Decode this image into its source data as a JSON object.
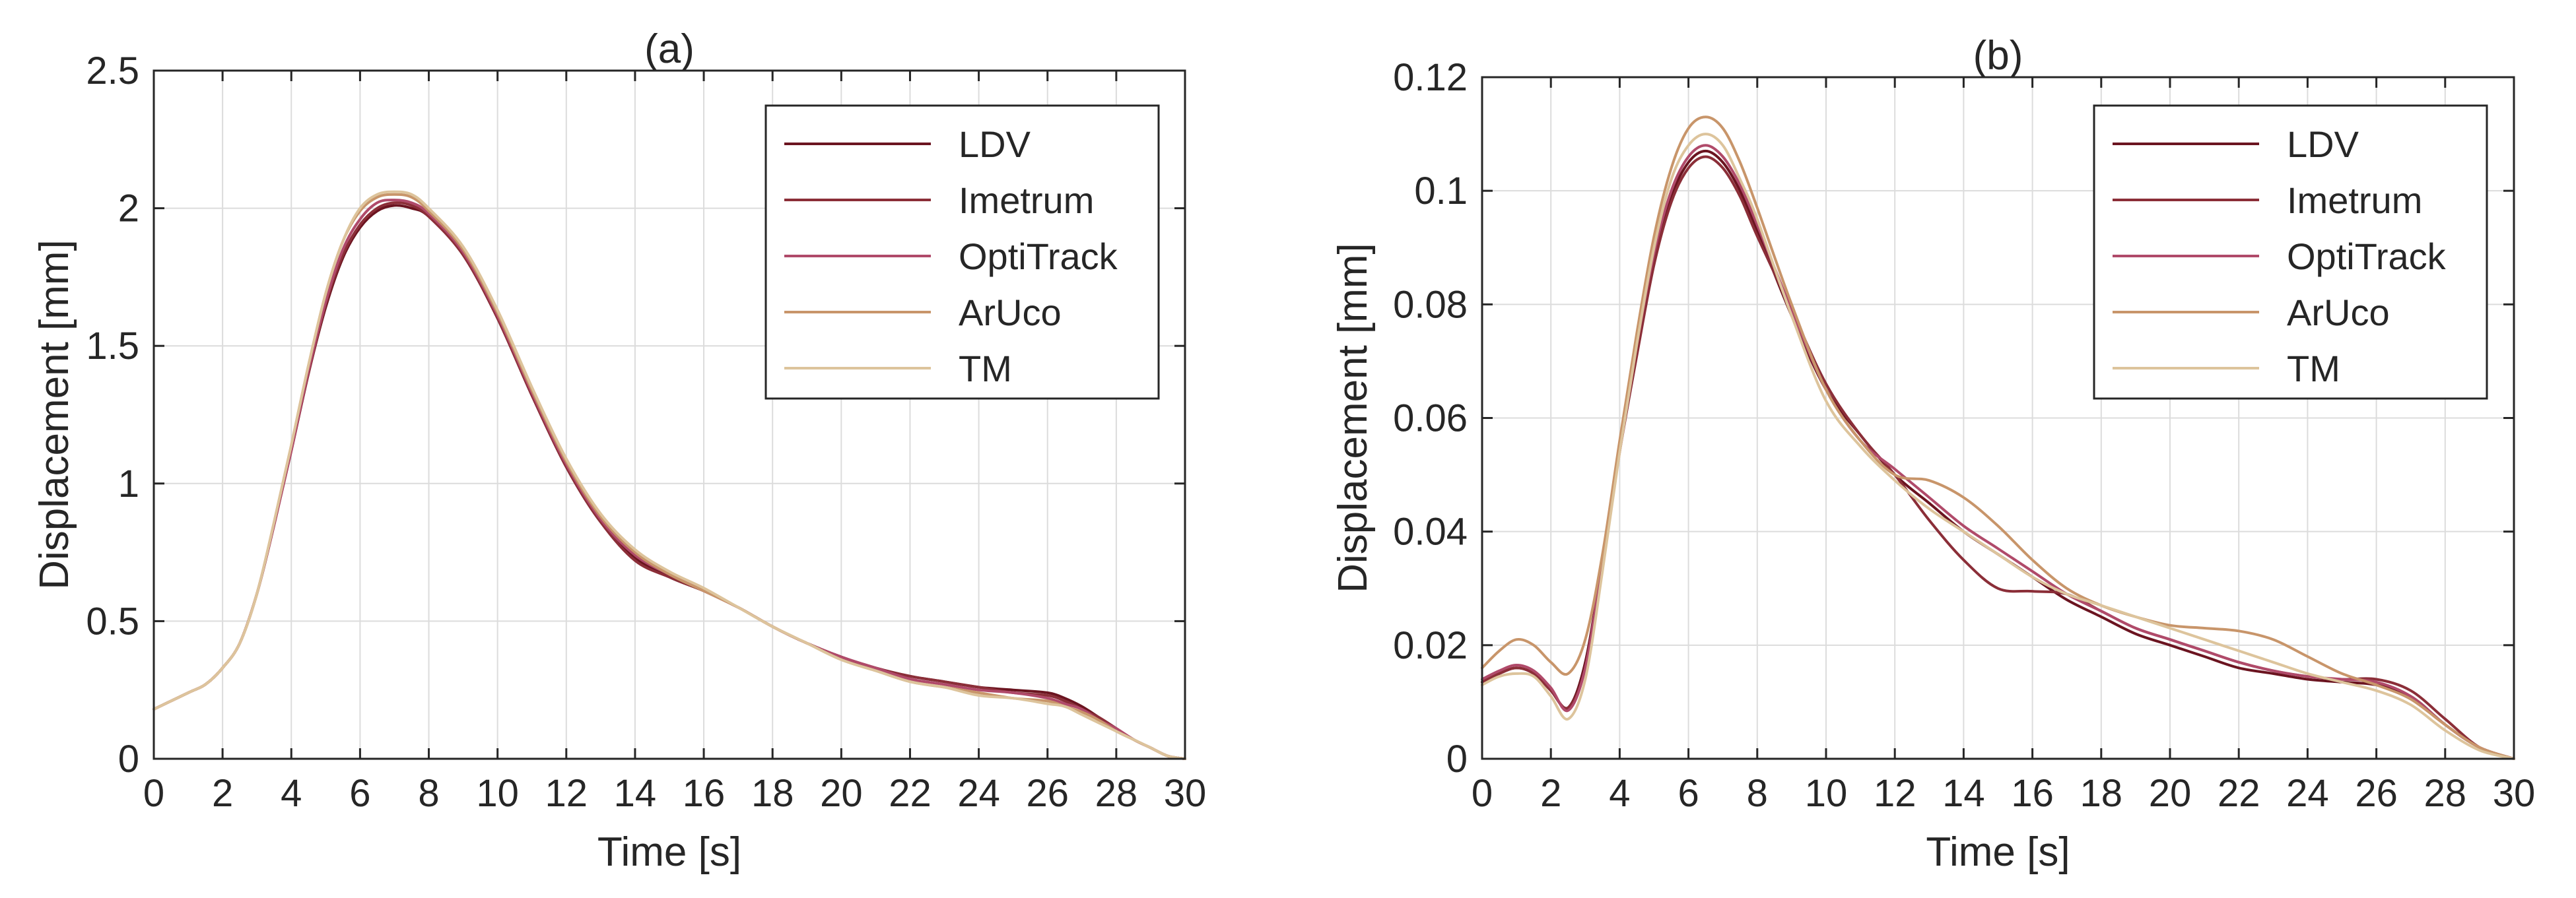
{
  "chart_data": [
    {
      "type": "line",
      "title": "(a)",
      "xlabel": "Time [s]",
      "ylabel": "Displacement [mm]",
      "xlim": [
        0,
        30
      ],
      "ylim": [
        0,
        2.5
      ],
      "xticks": [
        "0",
        "2",
        "4",
        "6",
        "8",
        "10",
        "12",
        "14",
        "16",
        "18",
        "20",
        "22",
        "24",
        "26",
        "28",
        "30"
      ],
      "yticks": [
        "0",
        "0.5",
        "1",
        "1.5",
        "2",
        "2.5"
      ],
      "grid": true,
      "legend_position": "top-right",
      "series": [
        {
          "name": "LDV",
          "color": "#6b1420",
          "x": [
            0,
            1,
            1.5,
            2,
            2.5,
            3,
            3.5,
            4,
            4.5,
            5,
            5.5,
            6,
            6.5,
            7,
            7.5,
            8,
            9,
            10,
            11,
            12,
            13,
            14,
            15,
            16,
            17,
            18,
            19,
            20,
            21,
            22,
            23,
            24,
            25,
            26,
            26.5,
            27,
            27.5,
            28,
            28.5,
            29,
            29.5,
            30
          ],
          "values": [
            0.18,
            0.24,
            0.27,
            0.33,
            0.42,
            0.6,
            0.85,
            1.12,
            1.4,
            1.64,
            1.82,
            1.93,
            1.99,
            2.01,
            2.0,
            1.97,
            1.83,
            1.6,
            1.32,
            1.06,
            0.86,
            0.73,
            0.66,
            0.61,
            0.55,
            0.48,
            0.42,
            0.37,
            0.33,
            0.3,
            0.28,
            0.26,
            0.25,
            0.24,
            0.22,
            0.19,
            0.15,
            0.11,
            0.07,
            0.04,
            0.01,
            0.0
          ]
        },
        {
          "name": "Imetrum",
          "color": "#8b2e38",
          "x": [
            0,
            1,
            1.5,
            2,
            2.5,
            3,
            3.5,
            4,
            4.5,
            5,
            5.5,
            6,
            6.5,
            7,
            7.5,
            8,
            9,
            10,
            11,
            12,
            13,
            14,
            15,
            16,
            17,
            18,
            19,
            20,
            21,
            22,
            23,
            24,
            25,
            26,
            26.5,
            27,
            27.5,
            28,
            28.5,
            29,
            29.5,
            30
          ],
          "values": [
            0.18,
            0.24,
            0.27,
            0.33,
            0.42,
            0.6,
            0.85,
            1.12,
            1.4,
            1.65,
            1.83,
            1.94,
            2.0,
            2.02,
            2.01,
            1.97,
            1.83,
            1.6,
            1.32,
            1.06,
            0.86,
            0.72,
            0.66,
            0.61,
            0.55,
            0.48,
            0.42,
            0.37,
            0.33,
            0.3,
            0.28,
            0.26,
            0.24,
            0.23,
            0.21,
            0.18,
            0.15,
            0.11,
            0.07,
            0.04,
            0.01,
            0.0
          ]
        },
        {
          "name": "OptiTrack",
          "color": "#b04a6a",
          "x": [
            0,
            1,
            1.5,
            2,
            2.5,
            3,
            3.5,
            4,
            4.5,
            5,
            5.5,
            6,
            6.5,
            7,
            7.5,
            8,
            9,
            10,
            11,
            12,
            13,
            14,
            15,
            16,
            17,
            18,
            19,
            20,
            21,
            22,
            23,
            24,
            25,
            26,
            26.5,
            27,
            27.5,
            28,
            28.5,
            29,
            29.5,
            30
          ],
          "values": [
            0.18,
            0.24,
            0.27,
            0.33,
            0.42,
            0.6,
            0.85,
            1.12,
            1.41,
            1.66,
            1.85,
            1.96,
            2.02,
            2.03,
            2.02,
            1.98,
            1.84,
            1.61,
            1.33,
            1.07,
            0.87,
            0.74,
            0.67,
            0.61,
            0.55,
            0.48,
            0.42,
            0.37,
            0.33,
            0.29,
            0.27,
            0.25,
            0.24,
            0.22,
            0.2,
            0.18,
            0.14,
            0.11,
            0.07,
            0.04,
            0.01,
            0.0
          ]
        },
        {
          "name": "ArUco",
          "color": "#c8956a",
          "x": [
            0,
            1,
            1.5,
            2,
            2.5,
            3,
            3.5,
            4,
            4.5,
            5,
            5.5,
            6,
            6.5,
            7,
            7.5,
            8,
            9,
            10,
            11,
            12,
            13,
            14,
            15,
            16,
            17,
            18,
            19,
            20,
            21,
            22,
            23,
            24,
            25,
            26,
            26.5,
            27,
            27.5,
            28,
            28.5,
            29,
            29.5,
            30
          ],
          "values": [
            0.18,
            0.24,
            0.27,
            0.33,
            0.42,
            0.6,
            0.86,
            1.14,
            1.43,
            1.69,
            1.88,
            1.99,
            2.04,
            2.05,
            2.04,
            1.99,
            1.85,
            1.62,
            1.34,
            1.08,
            0.88,
            0.75,
            0.67,
            0.61,
            0.55,
            0.48,
            0.42,
            0.36,
            0.32,
            0.28,
            0.26,
            0.24,
            0.22,
            0.21,
            0.19,
            0.17,
            0.14,
            0.1,
            0.07,
            0.04,
            0.01,
            0.0
          ]
        },
        {
          "name": "TM",
          "color": "#ddc49c",
          "x": [
            0,
            1,
            1.5,
            2,
            2.5,
            3,
            3.5,
            4,
            4.5,
            5,
            5.5,
            6,
            6.5,
            7,
            7.5,
            8,
            9,
            10,
            11,
            12,
            13,
            14,
            15,
            16,
            17,
            18,
            19,
            20,
            21,
            22,
            23,
            24,
            25,
            26,
            26.5,
            27,
            27.5,
            28,
            28.5,
            29,
            29.5,
            30
          ],
          "values": [
            0.18,
            0.24,
            0.27,
            0.33,
            0.42,
            0.6,
            0.86,
            1.14,
            1.43,
            1.69,
            1.88,
            2.0,
            2.05,
            2.06,
            2.05,
            2.0,
            1.86,
            1.63,
            1.35,
            1.09,
            0.89,
            0.76,
            0.68,
            0.62,
            0.55,
            0.48,
            0.42,
            0.36,
            0.32,
            0.28,
            0.26,
            0.23,
            0.22,
            0.2,
            0.19,
            0.16,
            0.13,
            0.1,
            0.07,
            0.04,
            0.01,
            0.0
          ]
        }
      ]
    },
    {
      "type": "line",
      "title": "(b)",
      "xlabel": "Time [s]",
      "ylabel": "Displacement [mm]",
      "xlim": [
        0,
        30
      ],
      "ylim": [
        0,
        0.12
      ],
      "xticks": [
        "0",
        "2",
        "4",
        "6",
        "8",
        "10",
        "12",
        "14",
        "16",
        "18",
        "20",
        "22",
        "24",
        "26",
        "28",
        "30"
      ],
      "yticks": [
        "0",
        "0.02",
        "0.04",
        "0.06",
        "0.08",
        "0.1",
        "0.12"
      ],
      "grid": true,
      "legend_position": "top-right",
      "series": [
        {
          "name": "LDV",
          "color": "#6b1420",
          "x": [
            0,
            0.5,
            1,
            1.5,
            2,
            2.5,
            3,
            3.5,
            4,
            4.5,
            5,
            5.5,
            6,
            6.5,
            7,
            7.5,
            8,
            9,
            10,
            11,
            12,
            13,
            14,
            15,
            16,
            17,
            18,
            19,
            20,
            21,
            22,
            23,
            24,
            25,
            26,
            27,
            28,
            29,
            30
          ],
          "values": [
            0.0135,
            0.015,
            0.016,
            0.015,
            0.012,
            0.009,
            0.017,
            0.035,
            0.055,
            0.072,
            0.088,
            0.099,
            0.105,
            0.107,
            0.105,
            0.1,
            0.093,
            0.078,
            0.065,
            0.057,
            0.05,
            0.045,
            0.04,
            0.036,
            0.032,
            0.028,
            0.025,
            0.022,
            0.02,
            0.018,
            0.016,
            0.015,
            0.014,
            0.0135,
            0.013,
            0.011,
            0.006,
            0.002,
            0.0
          ]
        },
        {
          "name": "Imetrum",
          "color": "#8b2e38",
          "x": [
            0,
            0.5,
            1,
            1.5,
            2,
            2.5,
            3,
            3.5,
            4,
            4.5,
            5,
            5.5,
            6,
            6.5,
            7,
            7.5,
            8,
            9,
            10,
            11,
            12,
            13,
            14,
            15,
            16,
            17,
            18,
            19,
            20,
            21,
            22,
            23,
            24,
            25,
            26,
            27,
            28,
            29,
            30
          ],
          "values": [
            0.0135,
            0.015,
            0.016,
            0.015,
            0.012,
            0.009,
            0.016,
            0.034,
            0.054,
            0.071,
            0.087,
            0.098,
            0.104,
            0.106,
            0.104,
            0.099,
            0.092,
            0.079,
            0.066,
            0.057,
            0.05,
            0.042,
            0.035,
            0.03,
            0.0295,
            0.029,
            0.026,
            0.023,
            0.021,
            0.019,
            0.017,
            0.0155,
            0.0145,
            0.014,
            0.014,
            0.012,
            0.007,
            0.002,
            0.0
          ]
        },
        {
          "name": "OptiTrack",
          "color": "#b04a6a",
          "x": [
            0,
            0.5,
            1,
            1.5,
            2,
            2.5,
            3,
            3.5,
            4,
            4.5,
            5,
            5.5,
            6,
            6.5,
            7,
            7.5,
            8,
            9,
            10,
            11,
            12,
            13,
            14,
            15,
            16,
            17,
            18,
            19,
            20,
            21,
            22,
            23,
            24,
            25,
            26,
            27,
            28,
            29,
            30
          ],
          "values": [
            0.014,
            0.0155,
            0.0165,
            0.0155,
            0.0125,
            0.0085,
            0.016,
            0.035,
            0.055,
            0.073,
            0.089,
            0.1,
            0.106,
            0.108,
            0.106,
            0.101,
            0.094,
            0.079,
            0.065,
            0.056,
            0.051,
            0.046,
            0.041,
            0.037,
            0.033,
            0.029,
            0.026,
            0.023,
            0.021,
            0.019,
            0.017,
            0.0155,
            0.0145,
            0.014,
            0.0135,
            0.011,
            0.006,
            0.002,
            0.0
          ]
        },
        {
          "name": "ArUco",
          "color": "#c8956a",
          "x": [
            0,
            0.5,
            1,
            1.5,
            2,
            2.5,
            3,
            3.5,
            4,
            4.5,
            5,
            5.5,
            6,
            6.5,
            7,
            7.5,
            8,
            9,
            10,
            11,
            12,
            13,
            14,
            15,
            16,
            17,
            18,
            19,
            20,
            21,
            22,
            23,
            24,
            25,
            26,
            27,
            28,
            29,
            30
          ],
          "values": [
            0.016,
            0.019,
            0.021,
            0.02,
            0.017,
            0.015,
            0.021,
            0.036,
            0.056,
            0.075,
            0.092,
            0.104,
            0.111,
            0.113,
            0.111,
            0.105,
            0.097,
            0.08,
            0.065,
            0.056,
            0.05,
            0.049,
            0.046,
            0.041,
            0.035,
            0.03,
            0.027,
            0.025,
            0.0235,
            0.023,
            0.0225,
            0.021,
            0.018,
            0.015,
            0.013,
            0.0105,
            0.006,
            0.002,
            0.0
          ]
        },
        {
          "name": "TM",
          "color": "#ddc49c",
          "x": [
            0,
            0.5,
            1,
            1.5,
            2,
            2.5,
            3,
            3.5,
            4,
            4.5,
            5,
            5.5,
            6,
            6.5,
            7,
            7.5,
            8,
            9,
            10,
            11,
            12,
            13,
            14,
            15,
            16,
            17,
            18,
            19,
            20,
            21,
            22,
            23,
            24,
            25,
            26,
            27,
            28,
            29,
            30
          ],
          "values": [
            0.013,
            0.0145,
            0.015,
            0.0145,
            0.011,
            0.007,
            0.014,
            0.033,
            0.054,
            0.073,
            0.09,
            0.102,
            0.108,
            0.11,
            0.108,
            0.102,
            0.095,
            0.078,
            0.063,
            0.055,
            0.049,
            0.044,
            0.04,
            0.036,
            0.032,
            0.029,
            0.027,
            0.025,
            0.023,
            0.021,
            0.019,
            0.017,
            0.015,
            0.0135,
            0.012,
            0.0095,
            0.005,
            0.0015,
            0.0
          ]
        }
      ]
    }
  ]
}
